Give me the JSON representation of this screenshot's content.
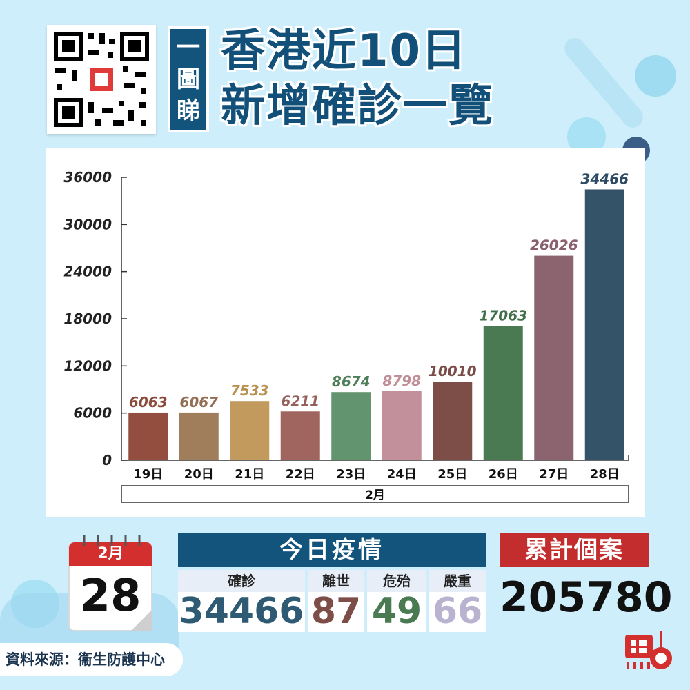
{
  "tag_chars": [
    "一",
    "圖",
    "睇"
  ],
  "title_line1": "香港近10日",
  "title_line2": "新增確診一覽",
  "chart_data": {
    "type": "bar",
    "categories": [
      "19日",
      "20日",
      "21日",
      "22日",
      "23日",
      "24日",
      "25日",
      "26日",
      "27日",
      "28日"
    ],
    "values": [
      6063,
      6067,
      7533,
      6211,
      8674,
      8798,
      10010,
      17063,
      26026,
      34466
    ],
    "colors": [
      "#934e3f",
      "#a07d5b",
      "#c29a5e",
      "#a0655f",
      "#639470",
      "#c2909a",
      "#7d4d48",
      "#4a7a52",
      "#8c6470",
      "#345268"
    ],
    "label_colors": [
      "#8a4a3b",
      "#946f55",
      "#b8904f",
      "#95605c",
      "#4f7f5a",
      "#c08f99",
      "#7a4c47",
      "#3f7049",
      "#8a606d",
      "#2f4b63"
    ],
    "yticks": [
      "0",
      "6000",
      "12000",
      "18000",
      "24000",
      "30000",
      "36000"
    ],
    "ylim": [
      0,
      36000
    ],
    "group_label": "2月",
    "grid": false
  },
  "calendar": {
    "month": "2月",
    "day": "28"
  },
  "today": {
    "header": "今日疫情",
    "items": [
      {
        "label": "確診",
        "value": "34466",
        "color": "#2f5a73"
      },
      {
        "label": "離世",
        "value": "87",
        "color": "#7d4d48"
      },
      {
        "label": "危殆",
        "value": "49",
        "color": "#4a7a52"
      },
      {
        "label": "嚴重",
        "value": "66",
        "color": "#b9b3cf"
      }
    ]
  },
  "cumulative": {
    "header": "累計個案",
    "value": "205780"
  },
  "source": "資料來源：衞生防護中心"
}
